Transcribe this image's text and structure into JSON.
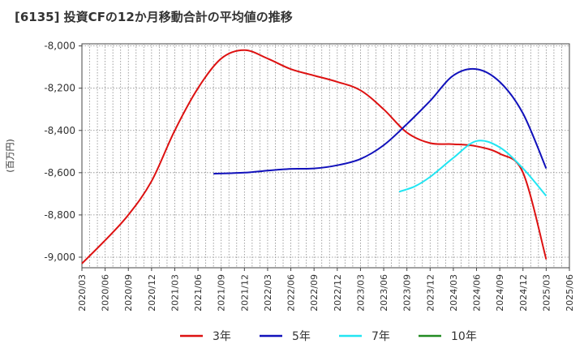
{
  "title": "[6135]  投資CFの12か月移動合計の平均値の推移",
  "chart_data": {
    "type": "line",
    "title": "[6135]  投資CFの12か月移動合計の平均値の推移",
    "ylabel": "(百万円)",
    "xlabel": "",
    "ylim": [
      -9050,
      -7990
    ],
    "xlim": [
      "2020/03",
      "2025/06"
    ],
    "yticks": [
      -8000,
      -8200,
      -8400,
      -8600,
      -8800,
      -9000
    ],
    "ytick_labels": [
      "-8,000",
      "-8,200",
      "-8,400",
      "-8,600",
      "-8,800",
      "-9,000"
    ],
    "xtick_labels": [
      "2020/03",
      "2020/06",
      "2020/09",
      "2020/12",
      "2021/03",
      "2021/06",
      "2021/09",
      "2021/12",
      "2022/03",
      "2022/06",
      "2022/09",
      "2022/12",
      "2023/03",
      "2023/06",
      "2023/09",
      "2023/12",
      "2024/03",
      "2024/06",
      "2024/09",
      "2024/12",
      "2025/03",
      "2025/06"
    ],
    "grid": true,
    "legend_position": "bottom",
    "series": [
      {
        "name": "3年",
        "color": "#dd1111",
        "points": [
          [
            "2020/03",
            -9030
          ],
          [
            "2020/06",
            -8920
          ],
          [
            "2020/09",
            -8800
          ],
          [
            "2020/12",
            -8640
          ],
          [
            "2021/03",
            -8400
          ],
          [
            "2021/06",
            -8200
          ],
          [
            "2021/09",
            -8060
          ],
          [
            "2021/12",
            -8020
          ],
          [
            "2022/03",
            -8060
          ],
          [
            "2022/06",
            -8110
          ],
          [
            "2022/09",
            -8140
          ],
          [
            "2022/12",
            -8170
          ],
          [
            "2023/03",
            -8210
          ],
          [
            "2023/06",
            -8300
          ],
          [
            "2023/09",
            -8410
          ],
          [
            "2023/12",
            -8460
          ],
          [
            "2024/03",
            -8465
          ],
          [
            "2024/06",
            -8475
          ],
          [
            "2024/09",
            -8510
          ],
          [
            "2024/12",
            -8600
          ],
          [
            "2025/03",
            -9010
          ]
        ]
      },
      {
        "name": "5年",
        "color": "#1111bb",
        "points": [
          [
            "2021/08",
            -8605
          ],
          [
            "2021/12",
            -8600
          ],
          [
            "2022/03",
            -8590
          ],
          [
            "2022/06",
            -8582
          ],
          [
            "2022/09",
            -8580
          ],
          [
            "2022/12",
            -8565
          ],
          [
            "2023/03",
            -8535
          ],
          [
            "2023/06",
            -8470
          ],
          [
            "2023/09",
            -8370
          ],
          [
            "2023/12",
            -8260
          ],
          [
            "2024/03",
            -8140
          ],
          [
            "2024/06",
            -8110
          ],
          [
            "2024/09",
            -8170
          ],
          [
            "2024/12",
            -8320
          ],
          [
            "2025/03",
            -8580
          ]
        ]
      },
      {
        "name": "7年",
        "color": "#22e5f2",
        "points": [
          [
            "2023/08",
            -8690
          ],
          [
            "2023/10",
            -8665
          ],
          [
            "2023/12",
            -8620
          ],
          [
            "2024/03",
            -8530
          ],
          [
            "2024/06",
            -8450
          ],
          [
            "2024/09",
            -8480
          ],
          [
            "2024/12",
            -8580
          ],
          [
            "2025/03",
            -8710
          ]
        ]
      },
      {
        "name": "10年",
        "color": "#228b22",
        "points": []
      }
    ]
  }
}
